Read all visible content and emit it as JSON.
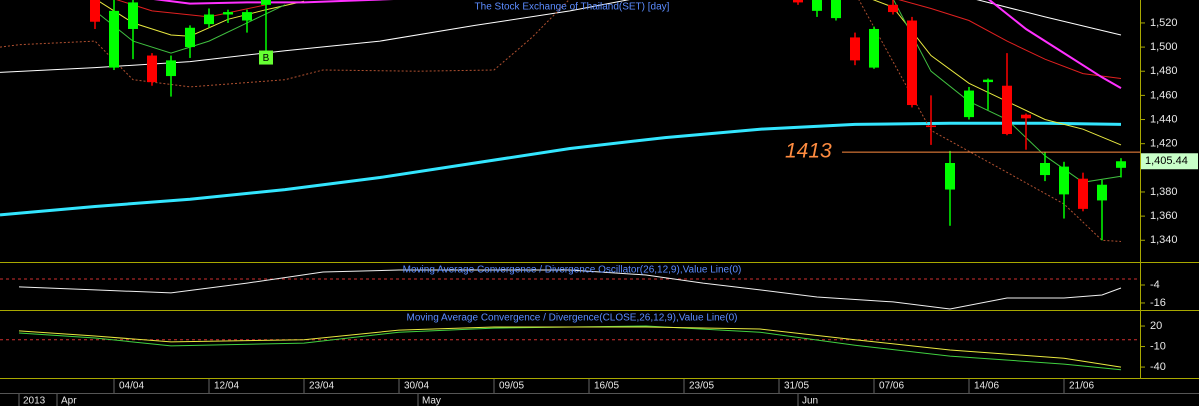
{
  "chart_data": [
    {
      "type": "candlestick",
      "title": "The Stock Exchange of Thailand(SET) [day]",
      "xlim": [
        0,
        60
      ],
      "ylim": [
        1322,
        1539
      ],
      "yticks": [
        {
          "value": 1340,
          "label": "1,340"
        },
        {
          "value": 1360,
          "label": "1,360"
        },
        {
          "value": 1380,
          "label": "1,380"
        },
        {
          "value": 1420,
          "label": "1,420"
        },
        {
          "value": 1440,
          "label": "1,440"
        },
        {
          "value": 1460,
          "label": "1,460"
        },
        {
          "value": 1480,
          "label": "1,480"
        },
        {
          "value": 1500,
          "label": "1,500"
        },
        {
          "value": 1520,
          "label": "1,520"
        }
      ],
      "up_color": "#00ff00",
      "down_color": "#ff0000",
      "candles": {
        "x": [
          5,
          6,
          7,
          8,
          9,
          10,
          11,
          12,
          13,
          14,
          42,
          43,
          44,
          45,
          46,
          47,
          48,
          49,
          50,
          51,
          52,
          53,
          54,
          55,
          56,
          57,
          58,
          59
        ],
        "open": [
          1545,
          1483,
          1515,
          1493,
          1476,
          1500,
          1519,
          1527,
          1522,
          1535,
          1545,
          1530,
          1524,
          1508,
          1483,
          1535,
          1522,
          1435,
          1382,
          1442,
          1471,
          1468,
          1444,
          1394,
          1378,
          1391,
          1373,
          1400
        ],
        "high": [
          1550,
          1545,
          1545,
          1495,
          1493,
          1518,
          1532,
          1531,
          1531,
          1545,
          1548,
          1545,
          1545,
          1512,
          1517,
          1539,
          1525,
          1460,
          1414,
          1467,
          1474,
          1495,
          1445,
          1413,
          1405,
          1396,
          1390,
          1408
        ],
        "low": [
          1515,
          1481,
          1490,
          1468,
          1459,
          1491,
          1516,
          1520,
          1512,
          1493,
          1535,
          1525,
          1522,
          1485,
          1482,
          1527,
          1450,
          1419,
          1352,
          1440,
          1448,
          1427,
          1415,
          1389,
          1358,
          1364,
          1340,
          1392
        ],
        "close": [
          1521,
          1530,
          1537,
          1471,
          1489,
          1516,
          1527,
          1529,
          1529,
          1540,
          1537,
          1540,
          1540,
          1489,
          1515,
          1529,
          1452,
          1434,
          1404,
          1464,
          1473,
          1428,
          1441,
          1404,
          1401,
          1366,
          1386,
          1405.44
        ]
      },
      "overlays": [
        {
          "color": "#33e6ff",
          "width": 3,
          "x": [
            0,
            5,
            10,
            15,
            20,
            25,
            30,
            35,
            40,
            45,
            50,
            55,
            59
          ],
          "values": [
            1361,
            1368,
            1374,
            1382,
            1392,
            1404,
            1416,
            1425,
            1432,
            1436,
            1437,
            1437,
            1436
          ]
        },
        {
          "color": "#ffffff",
          "width": 1,
          "x": [
            0,
            5,
            10,
            15,
            20,
            25,
            30,
            35,
            40,
            45,
            50,
            55,
            59
          ],
          "values": [
            1479,
            1483,
            1488,
            1497,
            1505,
            1518,
            1530,
            1545,
            1560,
            1560,
            1545,
            1525,
            1510
          ]
        },
        {
          "color": "#b05030",
          "width": 1,
          "style": "dotted",
          "x": [
            0,
            1,
            5,
            7,
            10,
            15,
            17,
            22,
            26,
            28,
            30,
            40,
            45,
            49,
            52,
            56,
            58,
            59
          ],
          "values": [
            1500,
            1502,
            1505,
            1473,
            1467,
            1473,
            1481,
            1480,
            1481,
            1508,
            1540,
            1560,
            1545,
            1431,
            1405,
            1370,
            1340,
            1339
          ]
        },
        {
          "color": "#e8e840",
          "width": 1,
          "x": [
            5,
            7,
            9,
            10,
            12,
            14,
            16,
            17,
            45,
            47,
            49,
            51,
            53,
            55,
            57,
            59
          ],
          "values": [
            1540,
            1520,
            1510,
            1509,
            1523,
            1531,
            1538,
            null,
            1545,
            1533,
            1493,
            1470,
            1455,
            1440,
            1432,
            1419
          ]
        },
        {
          "color": "#40c040",
          "width": 1,
          "x": [
            5,
            7,
            9,
            11,
            13,
            15,
            16,
            47,
            49,
            51,
            53,
            55,
            57,
            59
          ],
          "values": [
            1530,
            1505,
            1495,
            1505,
            1520,
            1535,
            null,
            1540,
            1480,
            1455,
            1440,
            1410,
            1388,
            1393
          ]
        },
        {
          "color": "#e02020",
          "width": 1,
          "x": [
            5,
            8,
            11,
            14,
            15,
            46,
            49,
            51,
            53,
            55,
            57,
            59
          ],
          "values": [
            1545,
            1530,
            1525,
            1535,
            null,
            1545,
            1532,
            1522,
            1505,
            1490,
            1478,
            1474
          ]
        },
        {
          "color": "#ff30ff",
          "width": 2,
          "x": [
            8,
            10,
            13,
            16,
            21,
            22,
            52,
            54,
            56,
            58,
            59
          ],
          "values": [
            1540,
            1536,
            1537,
            1537,
            1540,
            null,
            1540,
            1515,
            1495,
            1475,
            1466
          ]
        }
      ],
      "hline": {
        "value": 1413,
        "label": "1413",
        "color": "#ff8c40"
      },
      "last_value": {
        "value": 1405.44,
        "label": "1,405.44"
      },
      "annotations": [
        {
          "text": "B",
          "x": 14
        }
      ]
    },
    {
      "type": "line",
      "title": "Moving Average Convergence / Divergence Oscillator(26,12,9),Value Line(0)",
      "xlim": [
        0,
        60
      ],
      "ylim": [
        -20.7,
        10.7
      ],
      "yticks": [
        -4,
        -16
      ],
      "value_line": 0,
      "series": [
        {
          "color": "#f0f0f0",
          "x": [
            1,
            5,
            9,
            13,
            17,
            21,
            26,
            30,
            34,
            37,
            40,
            43,
            47,
            50,
            53,
            56,
            58,
            59
          ],
          "values": [
            -5.3,
            -7.3,
            -9.3,
            -2.7,
            4.7,
            6,
            6,
            6,
            2.7,
            -2.7,
            -7.3,
            -12,
            -15.3,
            -20,
            -12.7,
            -12.7,
            -10.7,
            -6
          ]
        }
      ]
    },
    {
      "type": "line",
      "title": "Moving Average Convergence / Divergence(CLOSE,26,12,9),Value Line(0)",
      "xlim": [
        0,
        60
      ],
      "ylim": [
        -56,
        42
      ],
      "yticks": [
        20,
        -10,
        -40
      ],
      "value_line": 0,
      "series": [
        {
          "color": "#40d040",
          "x": [
            1,
            5,
            9,
            16,
            21,
            26,
            34,
            40,
            45,
            50,
            56,
            59
          ],
          "values": [
            9.8,
            2.5,
            -9,
            -5,
            11,
            17,
            20,
            11,
            -8,
            -24,
            -35.6,
            -44
          ]
        },
        {
          "color": "#e8e840",
          "x": [
            1,
            5,
            9,
            16,
            21,
            26,
            34,
            40,
            45,
            50,
            56,
            59
          ],
          "values": [
            12.9,
            5.4,
            -3.2,
            0,
            14,
            18.6,
            18.6,
            15.7,
            0,
            -15,
            -27,
            -40
          ]
        }
      ],
      "xticks": [
        {
          "value": 6,
          "label": "04/04"
        },
        {
          "value": 11,
          "label": "12/04"
        },
        {
          "value": 16,
          "label": "23/04"
        },
        {
          "value": 21,
          "label": "30/04"
        },
        {
          "value": 26,
          "label": "09/05"
        },
        {
          "value": 31,
          "label": "16/05"
        },
        {
          "value": 36,
          "label": "23/05"
        },
        {
          "value": 41,
          "label": "31/05"
        },
        {
          "value": 46,
          "label": "07/06"
        },
        {
          "value": 51,
          "label": "14/06"
        },
        {
          "value": 56,
          "label": "21/06"
        }
      ],
      "period_ticks": [
        {
          "value": 1,
          "label": "2013"
        },
        {
          "value": 3,
          "label": "Apr"
        },
        {
          "value": 22,
          "label": "May"
        },
        {
          "value": 42,
          "label": "Jun"
        }
      ]
    }
  ]
}
